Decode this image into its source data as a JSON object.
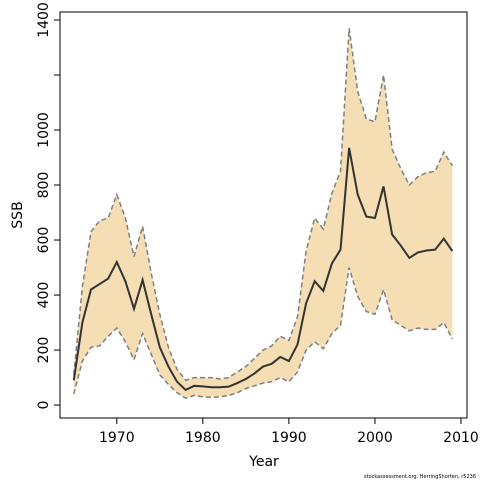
{
  "chart_data": {
    "type": "line",
    "xlabel": "Year",
    "ylabel": "SSB",
    "footnote": "stockassessment.org, HerringShorten, r5236",
    "x": [
      1965,
      1966,
      1967,
      1968,
      1969,
      1970,
      1971,
      1972,
      1973,
      1974,
      1975,
      1976,
      1977,
      1978,
      1979,
      1980,
      1981,
      1982,
      1983,
      1984,
      1985,
      1986,
      1987,
      1988,
      1989,
      1990,
      1991,
      1992,
      1993,
      1994,
      1995,
      1996,
      1997,
      1998,
      1999,
      2000,
      2001,
      2002,
      2003,
      2004,
      2005,
      2006,
      2007,
      2008,
      2009
    ],
    "values": [
      90,
      300,
      420,
      440,
      460,
      520,
      450,
      350,
      455,
      330,
      210,
      140,
      85,
      55,
      70,
      68,
      65,
      65,
      67,
      80,
      95,
      115,
      140,
      150,
      175,
      160,
      220,
      370,
      450,
      415,
      515,
      565,
      935,
      765,
      685,
      680,
      795,
      620,
      580,
      535,
      555,
      562,
      565,
      605,
      560
    ],
    "upper": [
      110,
      430,
      630,
      670,
      680,
      765,
      680,
      540,
      650,
      480,
      330,
      210,
      130,
      90,
      100,
      100,
      100,
      95,
      100,
      120,
      140,
      170,
      200,
      215,
      250,
      235,
      320,
      560,
      680,
      640,
      770,
      850,
      1370,
      1140,
      1040,
      1030,
      1200,
      930,
      860,
      800,
      830,
      845,
      850,
      920,
      870
    ],
    "lower": [
      40,
      160,
      210,
      215,
      250,
      280,
      230,
      165,
      260,
      185,
      110,
      75,
      45,
      25,
      35,
      30,
      28,
      30,
      35,
      45,
      60,
      70,
      80,
      85,
      100,
      85,
      120,
      200,
      230,
      205,
      260,
      290,
      500,
      395,
      340,
      330,
      420,
      310,
      290,
      270,
      280,
      275,
      275,
      300,
      240
    ],
    "color": "#333333",
    "band_color": "#f5deb3",
    "band_line_color": "#7f7f7f",
    "xlim": [
      1963.4,
      2010.7
    ],
    "ylim": [
      -47,
      1429
    ],
    "xticks": [
      1970,
      1980,
      1990,
      2000,
      2010
    ],
    "yticks": [
      0,
      200,
      400,
      600,
      800,
      1000,
      1400
    ],
    "yminor_ticks": [
      1200
    ]
  }
}
